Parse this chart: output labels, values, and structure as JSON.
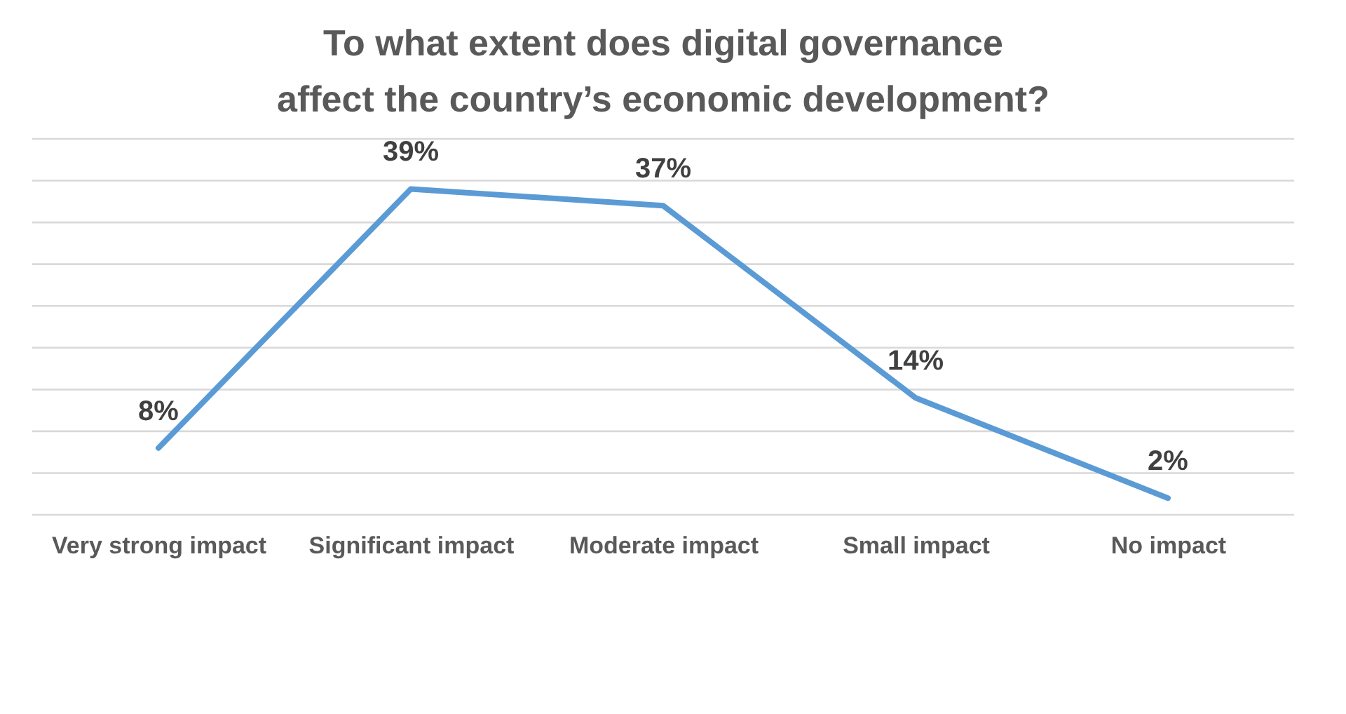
{
  "chart_data": {
    "type": "line",
    "title": "To what extent does digital governance affect the country’s economic development?",
    "categories": [
      "Very strong impact",
      "Significant impact",
      "Moderate impact",
      "Small impact",
      "No impact"
    ],
    "series": [
      {
        "color": "#5b9bd5",
        "values": [
          8,
          39,
          37,
          14,
          2
        ],
        "value_labels": [
          "8%",
          "39%",
          "37%",
          "14%",
          "2%"
        ]
      }
    ],
    "ylim": [
      0,
      45
    ],
    "yticks": [
      {
        "value": 0,
        "label": null
      },
      {
        "value": 5,
        "label": null
      },
      {
        "value": 10,
        "label": null
      },
      {
        "value": 15,
        "label": null
      },
      {
        "value": 20,
        "label": null
      },
      {
        "value": 25,
        "label": null
      },
      {
        "value": 30,
        "label": null
      },
      {
        "value": 35,
        "label": null
      },
      {
        "value": 40,
        "label": null
      },
      {
        "value": 45,
        "label": null
      }
    ],
    "grid": "y",
    "tick_labels": "x",
    "marker": "none",
    "line_style": "solid"
  }
}
